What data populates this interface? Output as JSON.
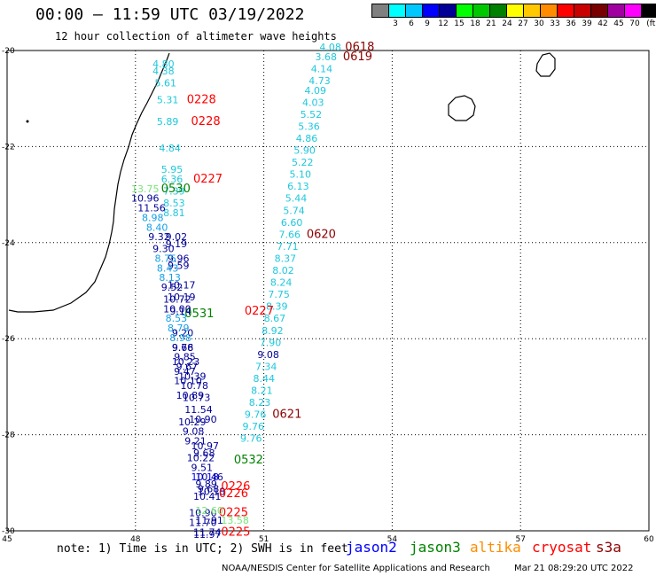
{
  "header": {
    "title": "00:00 – 11:59 UTC 03/19/2022",
    "subtitle": "12 hour collection of altimeter wave heights"
  },
  "legend": {
    "unit": "(ft)",
    "bins": [
      {
        "label": "",
        "color": "#808080"
      },
      {
        "label": "3",
        "color": "#00ffff"
      },
      {
        "label": "6",
        "color": "#00c8ff"
      },
      {
        "label": "9",
        "color": "#0000ff"
      },
      {
        "label": "12",
        "color": "#000096"
      },
      {
        "label": "15",
        "color": "#00ff00"
      },
      {
        "label": "18",
        "color": "#00c800"
      },
      {
        "label": "21",
        "color": "#008000"
      },
      {
        "label": "24",
        "color": "#ffff00"
      },
      {
        "label": "27",
        "color": "#ffc800"
      },
      {
        "label": "30",
        "color": "#ff8c00"
      },
      {
        "label": "33",
        "color": "#ff0000"
      },
      {
        "label": "36",
        "color": "#c80000"
      },
      {
        "label": "39",
        "color": "#780000"
      },
      {
        "label": "42",
        "color": "#a000a0"
      },
      {
        "label": "45",
        "color": "#ff00ff"
      },
      {
        "label": "70",
        "color": "#000000"
      }
    ]
  },
  "axes": {
    "lon_ticks": [
      "45",
      "48",
      "51",
      "54",
      "57",
      "60"
    ],
    "lat_ticks": [
      "-20",
      "-22",
      "-24",
      "-26",
      "-28",
      "-30"
    ]
  },
  "colors": {
    "cyan": "#1ec8dc",
    "light_blue": "#14a0e6",
    "blue": "#0000ff",
    "navy": "#000096",
    "light_green": "#78e678",
    "green": "#008200",
    "red": "#ff0000",
    "dark_red": "#8c0000"
  },
  "observations": [
    {
      "text": "4.08",
      "lon": 52.3,
      "lat": -20.0,
      "c": "cyan"
    },
    {
      "text": "0618",
      "lon": 52.9,
      "lat": -20.0,
      "c": "dark_red"
    },
    {
      "text": "3.68",
      "lon": 52.2,
      "lat": -20.2,
      "c": "cyan"
    },
    {
      "text": "0619",
      "lon": 52.85,
      "lat": -20.2,
      "c": "dark_red"
    },
    {
      "text": "4.14",
      "lon": 52.1,
      "lat": -20.45,
      "c": "cyan"
    },
    {
      "text": "4.73",
      "lon": 52.05,
      "lat": -20.7,
      "c": "cyan"
    },
    {
      "text": "4.09",
      "lon": 51.95,
      "lat": -20.9,
      "c": "cyan"
    },
    {
      "text": "4.03",
      "lon": 51.9,
      "lat": -21.15,
      "c": "cyan"
    },
    {
      "text": "5.52",
      "lon": 51.85,
      "lat": -21.4,
      "c": "cyan"
    },
    {
      "text": "5.36",
      "lon": 51.8,
      "lat": -21.65,
      "c": "cyan"
    },
    {
      "text": "4.86",
      "lon": 51.75,
      "lat": -21.9,
      "c": "cyan"
    },
    {
      "text": "5.90",
      "lon": 51.7,
      "lat": -22.15,
      "c": "cyan"
    },
    {
      "text": "5.22",
      "lon": 51.65,
      "lat": -22.4,
      "c": "cyan"
    },
    {
      "text": "5.10",
      "lon": 51.6,
      "lat": -22.65,
      "c": "cyan"
    },
    {
      "text": "6.13",
      "lon": 51.55,
      "lat": -22.9,
      "c": "cyan"
    },
    {
      "text": "5.44",
      "lon": 51.5,
      "lat": -23.15,
      "c": "cyan"
    },
    {
      "text": "5.74",
      "lon": 51.45,
      "lat": -23.4,
      "c": "cyan"
    },
    {
      "text": "6.60",
      "lon": 51.4,
      "lat": -23.65,
      "c": "cyan"
    },
    {
      "text": "7.66",
      "lon": 51.35,
      "lat": -23.9,
      "c": "cyan"
    },
    {
      "text": "0620",
      "lon": 52.0,
      "lat": -23.9,
      "c": "dark_red"
    },
    {
      "text": "7.71",
      "lon": 51.3,
      "lat": -24.15,
      "c": "cyan"
    },
    {
      "text": "8.37",
      "lon": 51.25,
      "lat": -24.4,
      "c": "cyan"
    },
    {
      "text": "8.02",
      "lon": 51.2,
      "lat": -24.65,
      "c": "cyan"
    },
    {
      "text": "8.24",
      "lon": 51.15,
      "lat": -24.9,
      "c": "cyan"
    },
    {
      "text": "7.75",
      "lon": 51.1,
      "lat": -25.15,
      "c": "cyan"
    },
    {
      "text": "8.39",
      "lon": 51.05,
      "lat": -25.4,
      "c": "cyan"
    },
    {
      "text": "8.67",
      "lon": 51.0,
      "lat": -25.65,
      "c": "cyan"
    },
    {
      "text": "8.92",
      "lon": 50.95,
      "lat": -25.9,
      "c": "cyan"
    },
    {
      "text": "7.90",
      "lon": 50.9,
      "lat": -26.15,
      "c": "cyan"
    },
    {
      "text": "9.08",
      "lon": 50.85,
      "lat": -26.4,
      "c": "navy"
    },
    {
      "text": "7.34",
      "lon": 50.8,
      "lat": -26.65,
      "c": "cyan"
    },
    {
      "text": "8.44",
      "lon": 50.75,
      "lat": -26.9,
      "c": "cyan"
    },
    {
      "text": "8.21",
      "lon": 50.7,
      "lat": -27.15,
      "c": "cyan"
    },
    {
      "text": "8.23",
      "lon": 50.65,
      "lat": -27.4,
      "c": "cyan"
    },
    {
      "text": "9.76",
      "lon": 50.55,
      "lat": -27.65,
      "c": "cyan"
    },
    {
      "text": "0621",
      "lon": 51.2,
      "lat": -27.65,
      "c": "dark_red"
    },
    {
      "text": "9.76",
      "lon": 50.5,
      "lat": -27.9,
      "c": "cyan"
    },
    {
      "text": "9.76",
      "lon": 50.45,
      "lat": -28.15,
      "c": "cyan"
    },
    {
      "text": "4.80",
      "lon": 48.4,
      "lat": -20.35,
      "c": "cyan"
    },
    {
      "text": "4.38",
      "lon": 48.4,
      "lat": -20.5,
      "c": "cyan"
    },
    {
      "text": "5.61",
      "lon": 48.45,
      "lat": -20.75,
      "c": "cyan"
    },
    {
      "text": "5.31",
      "lon": 48.5,
      "lat": -21.1,
      "c": "cyan"
    },
    {
      "text": "0228",
      "lon": 49.2,
      "lat": -21.1,
      "c": "red"
    },
    {
      "text": "5.89",
      "lon": 48.5,
      "lat": -21.55,
      "c": "cyan"
    },
    {
      "text": "0228",
      "lon": 49.3,
      "lat": -21.55,
      "c": "red"
    },
    {
      "text": "4.84",
      "lon": 48.55,
      "lat": -22.1,
      "c": "cyan"
    },
    {
      "text": "5.95",
      "lon": 48.6,
      "lat": -22.55,
      "c": "cyan"
    },
    {
      "text": "6.36",
      "lon": 48.6,
      "lat": -22.75,
      "c": "cyan"
    },
    {
      "text": "0227",
      "lon": 49.35,
      "lat": -22.75,
      "c": "red"
    },
    {
      "text": "7.39",
      "lon": 48.65,
      "lat": -23.0,
      "c": "cyan"
    },
    {
      "text": "8.53",
      "lon": 48.65,
      "lat": -23.25,
      "c": "cyan"
    },
    {
      "text": "8.81",
      "lon": 48.65,
      "lat": -23.45,
      "c": "cyan"
    },
    {
      "text": "9.02",
      "lon": 48.7,
      "lat": -23.95,
      "c": "navy"
    },
    {
      "text": "9.19",
      "lon": 48.7,
      "lat": -24.1,
      "c": "navy"
    },
    {
      "text": "9.96",
      "lon": 48.75,
      "lat": -24.4,
      "c": "navy"
    },
    {
      "text": "9.59",
      "lon": 48.75,
      "lat": -24.55,
      "c": "navy"
    },
    {
      "text": "10.17",
      "lon": 48.75,
      "lat": -24.95,
      "c": "navy"
    },
    {
      "text": "10.19",
      "lon": 48.75,
      "lat": -25.2,
      "c": "navy"
    },
    {
      "text": "9.14",
      "lon": 48.8,
      "lat": -25.5,
      "c": "navy"
    },
    {
      "text": "0531",
      "lon": 49.15,
      "lat": -25.55,
      "c": "green"
    },
    {
      "text": "0227",
      "lon": 50.55,
      "lat": -25.5,
      "c": "red"
    },
    {
      "text": "9.20",
      "lon": 48.85,
      "lat": -25.95,
      "c": "navy"
    },
    {
      "text": "9.68",
      "lon": 48.85,
      "lat": -26.25,
      "c": "navy"
    },
    {
      "text": "10.23",
      "lon": 48.85,
      "lat": -26.55,
      "c": "navy"
    },
    {
      "text": "9.47",
      "lon": 48.9,
      "lat": -26.75,
      "c": "navy"
    },
    {
      "text": "10.10",
      "lon": 48.9,
      "lat": -26.95,
      "c": "navy"
    },
    {
      "text": "10.89",
      "lon": 48.95,
      "lat": -27.25,
      "c": "navy"
    },
    {
      "text": "10.29",
      "lon": 49.0,
      "lat": -27.8,
      "c": "navy"
    },
    {
      "text": "9.08",
      "lon": 49.1,
      "lat": -28.0,
      "c": "navy"
    },
    {
      "text": "9.21",
      "lon": 49.15,
      "lat": -28.2,
      "c": "navy"
    },
    {
      "text": "10.22",
      "lon": 49.2,
      "lat": -28.55,
      "c": "navy"
    },
    {
      "text": "9.51",
      "lon": 49.3,
      "lat": -28.75,
      "c": "navy"
    },
    {
      "text": "10.18",
      "lon": 49.3,
      "lat": -28.95,
      "c": "blue"
    },
    {
      "text": "9.89",
      "lon": 49.4,
      "lat": -29.1,
      "c": "navy"
    },
    {
      "text": "0226",
      "lon": 50.0,
      "lat": -29.15,
      "c": "red"
    },
    {
      "text": "10.18",
      "lon": 49.45,
      "lat": -29.25,
      "c": "navy"
    },
    {
      "text": "0226",
      "lon": 49.95,
      "lat": -29.3,
      "c": "red"
    },
    {
      "text": "10.90",
      "lon": 49.25,
      "lat": -29.7,
      "c": "navy"
    },
    {
      "text": "0225",
      "lon": 49.95,
      "lat": -29.7,
      "c": "red"
    },
    {
      "text": "11.70",
      "lon": 49.25,
      "lat": -29.9,
      "c": "navy"
    },
    {
      "text": "13.58",
      "lon": 50.0,
      "lat": -29.85,
      "c": "light_green"
    },
    {
      "text": "11.97",
      "lon": 49.35,
      "lat": -30.15,
      "c": "navy"
    },
    {
      "text": "0225",
      "lon": 50.0,
      "lat": -30.1,
      "c": "red"
    },
    {
      "text": "13.75",
      "lon": 47.9,
      "lat": -22.95,
      "c": "light_green"
    },
    {
      "text": "0530",
      "lon": 48.6,
      "lat": -22.95,
      "c": "green"
    },
    {
      "text": "10.96",
      "lon": 47.9,
      "lat": -23.15,
      "c": "navy"
    },
    {
      "text": "11.56",
      "lon": 48.05,
      "lat": -23.35,
      "c": "navy"
    },
    {
      "text": "8.98",
      "lon": 48.15,
      "lat": -23.55,
      "c": "light_blue"
    },
    {
      "text": "8.40",
      "lon": 48.25,
      "lat": -23.75,
      "c": "light_blue"
    },
    {
      "text": "9.32",
      "lon": 48.3,
      "lat": -23.95,
      "c": "navy"
    },
    {
      "text": "9.30",
      "lon": 48.4,
      "lat": -24.2,
      "c": "navy"
    },
    {
      "text": "8.75",
      "lon": 48.45,
      "lat": -24.4,
      "c": "light_blue"
    },
    {
      "text": "8.43",
      "lon": 48.5,
      "lat": -24.6,
      "c": "light_blue"
    },
    {
      "text": "8.13",
      "lon": 48.55,
      "lat": -24.8,
      "c": "light_blue"
    },
    {
      "text": "9.52",
      "lon": 48.6,
      "lat": -25.0,
      "c": "navy"
    },
    {
      "text": "10.72",
      "lon": 48.65,
      "lat": -25.25,
      "c": "navy"
    },
    {
      "text": "10.00",
      "lon": 48.65,
      "lat": -25.45,
      "c": "navy"
    },
    {
      "text": "8.53",
      "lon": 48.7,
      "lat": -25.65,
      "c": "light_blue"
    },
    {
      "text": "8.79",
      "lon": 48.75,
      "lat": -25.85,
      "c": "light_blue"
    },
    {
      "text": "8.98",
      "lon": 48.8,
      "lat": -26.05,
      "c": "light_blue"
    },
    {
      "text": "9.76",
      "lon": 48.85,
      "lat": -26.25,
      "c": "navy"
    },
    {
      "text": "9.85",
      "lon": 48.9,
      "lat": -26.45,
      "c": "navy"
    },
    {
      "text": "9.67",
      "lon": 48.95,
      "lat": -26.65,
      "c": "navy"
    },
    {
      "text": "10.39",
      "lon": 49.0,
      "lat": -26.85,
      "c": "navy"
    },
    {
      "text": "10.78",
      "lon": 49.05,
      "lat": -27.05,
      "c": "navy"
    },
    {
      "text": "10.73",
      "lon": 49.1,
      "lat": -27.3,
      "c": "navy"
    },
    {
      "text": "11.54",
      "lon": 49.15,
      "lat": -27.55,
      "c": "navy"
    },
    {
      "text": "10.90",
      "lon": 49.25,
      "lat": -27.75,
      "c": "navy"
    },
    {
      "text": "10.97",
      "lon": 49.3,
      "lat": -28.3,
      "c": "navy"
    },
    {
      "text": "9.68",
      "lon": 49.35,
      "lat": -28.45,
      "c": "navy"
    },
    {
      "text": "10.46",
      "lon": 49.4,
      "lat": -28.95,
      "c": "navy"
    },
    {
      "text": "9.68",
      "lon": 49.45,
      "lat": -29.2,
      "c": "navy"
    },
    {
      "text": "10.41",
      "lon": 49.35,
      "lat": -29.35,
      "c": "navy"
    },
    {
      "text": "12.60",
      "lon": 49.4,
      "lat": -29.65,
      "c": "light_green"
    },
    {
      "text": "11.91",
      "lon": 49.4,
      "lat": -29.85,
      "c": "navy"
    },
    {
      "text": "11.74",
      "lon": 49.35,
      "lat": -30.1,
      "c": "navy"
    },
    {
      "text": "0532",
      "lon": 50.3,
      "lat": -28.6,
      "c": "green"
    }
  ],
  "footer": {
    "note": "note: 1) Time is in UTC; 2) SWH is in feet",
    "satellites": [
      {
        "name": "jason2",
        "color": "#0000ff",
        "lon_offset": 0
      },
      {
        "name": "jason3",
        "color": "#008200",
        "lon_offset": 0
      },
      {
        "name": "altika",
        "color": "#ff8c00",
        "lon_offset": 0
      },
      {
        "name": "cryosat",
        "color": "#ff0000",
        "lon_offset": 0
      },
      {
        "name": "s3a",
        "color": "#8c0000",
        "lon_offset": 0
      }
    ],
    "credit": "NOAA/NESDIS Center for Satellite Applications and Research",
    "timestamp": "Mar 21 08:29:20 UTC 2022"
  }
}
